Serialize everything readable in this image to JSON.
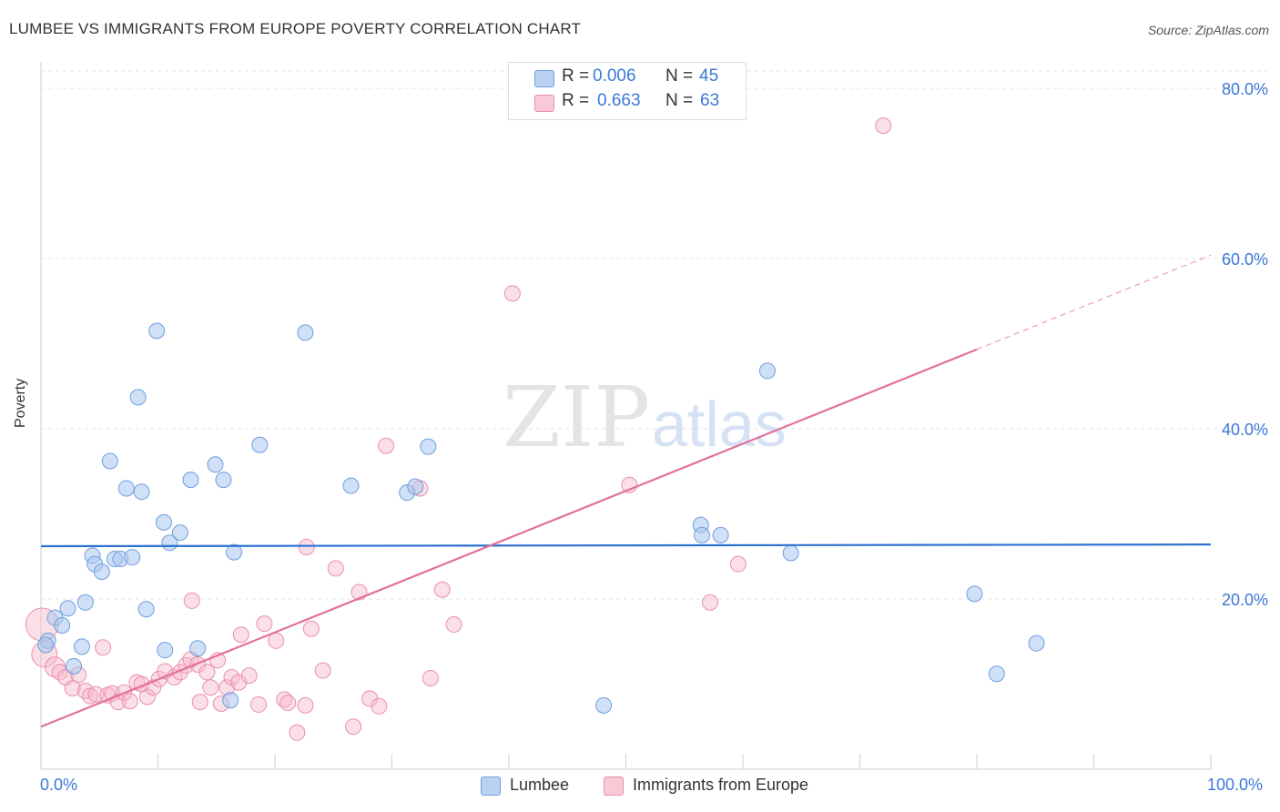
{
  "title": "LUMBEE VS IMMIGRANTS FROM EUROPE POVERTY CORRELATION CHART",
  "source": "Source: ZipAtlas.com",
  "watermark": {
    "zip": "ZIP",
    "atlas": "atlas"
  },
  "colors": {
    "lumbee_fill": "#a9c6ef",
    "lumbee_stroke": "#6f9fdd",
    "lumbee_line": "#2e72cf",
    "europe_fill": "#f6b8ca",
    "europe_stroke": "#ea8fab",
    "europe_line": "#e2709a",
    "axis_text": "#3a78d8",
    "grid": "#e3e3e3"
  },
  "stats": {
    "lumbee": {
      "r_label": "R =",
      "r_value": "0.006",
      "n_label": "N =",
      "n_value": "45"
    },
    "europe": {
      "r_label": "R =",
      "r_value": "0.663",
      "n_label": "N =",
      "n_value": "63"
    }
  },
  "legend": {
    "lumbee": "Lumbee",
    "europe": "Immigrants from Europe"
  },
  "chart_data": {
    "type": "scatter",
    "title": "LUMBEE VS IMMIGRANTS FROM EUROPE POVERTY CORRELATION CHART",
    "xlabel": "",
    "ylabel": "Poverty",
    "xlim": [
      0,
      100
    ],
    "ylim": [
      0,
      85
    ],
    "x_tick_labels": {
      "min": "0.0%",
      "max": "100.0%"
    },
    "y_ticks": [
      {
        "value": 20,
        "label": "20.0%"
      },
      {
        "value": 40,
        "label": "40.0%"
      },
      {
        "value": 60,
        "label": "60.0%"
      },
      {
        "value": 80,
        "label": "80.0%"
      }
    ],
    "grid": true,
    "legend_position": "bottom",
    "series": [
      {
        "name": "Lumbee",
        "r": 0.006,
        "n": 45,
        "trend": {
          "x": [
            0,
            100
          ],
          "y": [
            26.2,
            26.4
          ],
          "solid_until": 100
        },
        "points": [
          [
            0.6,
            15.1
          ],
          [
            1.2,
            17.8
          ],
          [
            1.8,
            16.9
          ],
          [
            2.3,
            18.9
          ],
          [
            3.5,
            14.4
          ],
          [
            3.8,
            19.6
          ],
          [
            4.4,
            25.1
          ],
          [
            4.6,
            24.1
          ],
          [
            5.2,
            23.2
          ],
          [
            5.9,
            36.2
          ],
          [
            6.3,
            24.7
          ],
          [
            6.8,
            24.7
          ],
          [
            7.3,
            33.0
          ],
          [
            7.8,
            24.9
          ],
          [
            8.3,
            43.7
          ],
          [
            8.6,
            32.6
          ],
          [
            9.0,
            18.8
          ],
          [
            9.9,
            51.5
          ],
          [
            10.5,
            29.0
          ],
          [
            10.6,
            14.0
          ],
          [
            11.0,
            26.6
          ],
          [
            11.9,
            27.8
          ],
          [
            12.8,
            34.0
          ],
          [
            13.4,
            14.2
          ],
          [
            14.9,
            35.8
          ],
          [
            15.6,
            34.0
          ],
          [
            16.2,
            8.1
          ],
          [
            16.5,
            25.5
          ],
          [
            18.7,
            38.1
          ],
          [
            22.6,
            51.3
          ],
          [
            26.5,
            33.3
          ],
          [
            31.3,
            32.5
          ],
          [
            32.0,
            33.2
          ],
          [
            33.1,
            37.9
          ],
          [
            48.1,
            7.5
          ],
          [
            56.4,
            28.7
          ],
          [
            56.5,
            27.5
          ],
          [
            58.1,
            27.5
          ],
          [
            62.1,
            46.8
          ],
          [
            64.1,
            25.4
          ],
          [
            79.8,
            20.6
          ],
          [
            81.7,
            11.2
          ],
          [
            85.1,
            14.8
          ],
          [
            0.4,
            14.6
          ],
          [
            2.8,
            12.1
          ]
        ]
      },
      {
        "name": "Immigrants from Europe",
        "r": 0.663,
        "n": 63,
        "trend": {
          "x": [
            0,
            100
          ],
          "y": [
            5.0,
            60.4
          ],
          "solid_until": 80
        },
        "points": [
          [
            0.1,
            17.0
          ],
          [
            0.3,
            13.5
          ],
          [
            1.2,
            12.0
          ],
          [
            1.6,
            11.4
          ],
          [
            2.1,
            10.8
          ],
          [
            2.7,
            9.5
          ],
          [
            3.2,
            11.1
          ],
          [
            3.8,
            9.2
          ],
          [
            4.2,
            8.6
          ],
          [
            4.7,
            8.8
          ],
          [
            5.3,
            14.3
          ],
          [
            5.7,
            8.7
          ],
          [
            6.1,
            8.9
          ],
          [
            6.6,
            7.9
          ],
          [
            7.1,
            9.0
          ],
          [
            7.6,
            8.0
          ],
          [
            8.2,
            10.2
          ],
          [
            8.6,
            10.0
          ],
          [
            9.1,
            8.5
          ],
          [
            9.6,
            9.6
          ],
          [
            10.1,
            10.6
          ],
          [
            10.6,
            11.5
          ],
          [
            11.4,
            10.8
          ],
          [
            11.9,
            11.4
          ],
          [
            12.4,
            12.2
          ],
          [
            12.8,
            12.9
          ],
          [
            12.9,
            19.8
          ],
          [
            13.4,
            12.3
          ],
          [
            13.6,
            7.9
          ],
          [
            14.2,
            11.4
          ],
          [
            14.5,
            9.6
          ],
          [
            15.1,
            12.8
          ],
          [
            15.4,
            7.7
          ],
          [
            15.9,
            9.6
          ],
          [
            16.3,
            10.8
          ],
          [
            16.9,
            10.2
          ],
          [
            17.1,
            15.8
          ],
          [
            17.8,
            11.0
          ],
          [
            18.6,
            7.6
          ],
          [
            19.1,
            17.1
          ],
          [
            20.1,
            15.1
          ],
          [
            20.8,
            8.2
          ],
          [
            21.1,
            7.8
          ],
          [
            21.9,
            4.3
          ],
          [
            22.6,
            7.5
          ],
          [
            22.7,
            26.1
          ],
          [
            23.1,
            16.5
          ],
          [
            24.1,
            11.6
          ],
          [
            25.2,
            23.6
          ],
          [
            26.7,
            5.0
          ],
          [
            27.2,
            20.8
          ],
          [
            28.1,
            8.3
          ],
          [
            28.9,
            7.4
          ],
          [
            29.5,
            38.0
          ],
          [
            32.4,
            33.0
          ],
          [
            33.3,
            10.7
          ],
          [
            34.3,
            21.1
          ],
          [
            35.3,
            17.0
          ],
          [
            40.3,
            55.9
          ],
          [
            50.3,
            33.4
          ],
          [
            57.2,
            19.6
          ],
          [
            59.6,
            24.1
          ],
          [
            72.0,
            75.6
          ]
        ]
      }
    ]
  }
}
